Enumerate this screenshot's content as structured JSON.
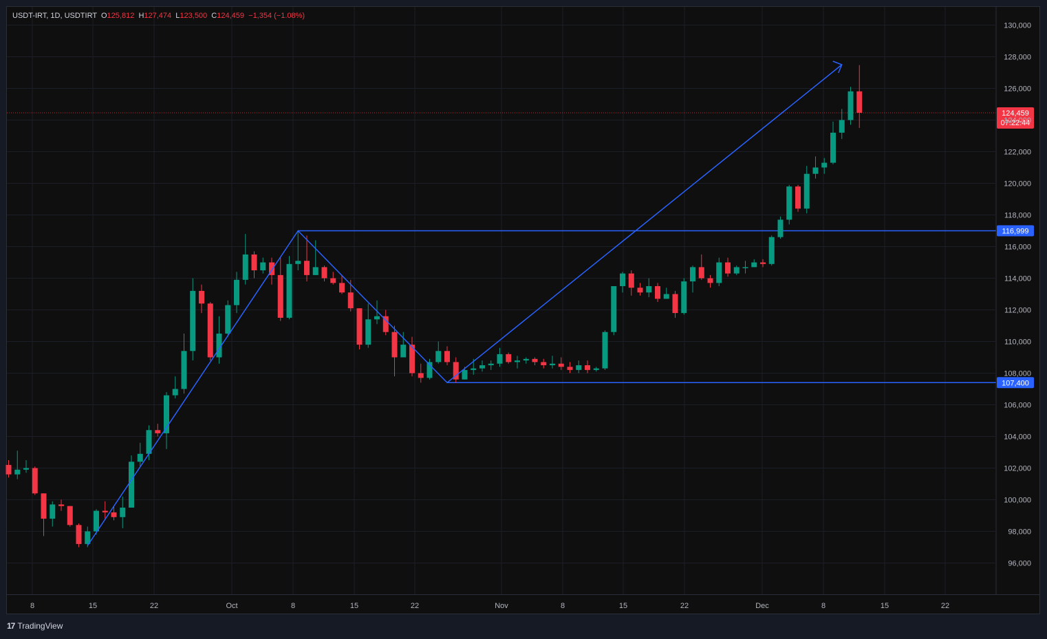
{
  "legend": {
    "symbol": "USDT-IRT, 1D, USDTIRT",
    "o_label": "O",
    "o_value": "125,812",
    "h_label": "H",
    "h_value": "127,474",
    "l_label": "L",
    "l_value": "123,500",
    "c_label": "C",
    "c_value": "124,459",
    "change": "−1,354 (−1.08%)"
  },
  "price_tag": {
    "price": "124,459",
    "countdown": "07:22:44"
  },
  "level_tags": [
    "116,999",
    "107,400"
  ],
  "footer": {
    "brand": "TradingView"
  },
  "colors": {
    "up": "#089981",
    "down": "#f23645",
    "lines": "#2962ff",
    "background": "#0f0f0f"
  },
  "chart_data": {
    "type": "candlestick",
    "y_ticks": [
      "130,000",
      "128,000",
      "126,000",
      "124,000",
      "122,000",
      "120,000",
      "118,000",
      "116,000",
      "114,000",
      "112,000",
      "110,000",
      "108,000",
      "106,000",
      "104,000",
      "102,000",
      "100,000",
      "98,000",
      "96,000"
    ],
    "x_ticks": [
      "8",
      "15",
      "22",
      "Oct",
      "8",
      "15",
      "22",
      "Nov",
      "8",
      "15",
      "22",
      "Dec",
      "8",
      "15",
      "22"
    ],
    "ylim": [
      94800,
      130600
    ],
    "current_price": 124459,
    "levels": [
      116999,
      107400
    ],
    "zigzag": [
      {
        "bar": 9,
        "price": 97100
      },
      {
        "bar": 33,
        "price": 117000
      },
      {
        "bar": 50,
        "price": 107400
      },
      {
        "bar": 95,
        "price": 127500
      }
    ],
    "candles": [
      [
        102200,
        101600,
        102500,
        101400
      ],
      [
        101600,
        101900,
        103100,
        101300
      ],
      [
        101900,
        102000,
        102500,
        101700
      ],
      [
        102000,
        100400,
        102100,
        100300
      ],
      [
        100400,
        98800,
        100400,
        97700
      ],
      [
        98800,
        99700,
        99900,
        98300
      ],
      [
        99700,
        99600,
        100000,
        99300
      ],
      [
        99600,
        98400,
        99600,
        98300
      ],
      [
        98400,
        97200,
        98500,
        97000
      ],
      [
        97200,
        98000,
        98300,
        97000
      ],
      [
        98000,
        99300,
        99400,
        97800
      ],
      [
        99300,
        99200,
        99900,
        98800
      ],
      [
        99200,
        98900,
        99600,
        98700
      ],
      [
        98900,
        99500,
        100200,
        98200
      ],
      [
        99500,
        102400,
        102800,
        99500
      ],
      [
        102400,
        102900,
        103600,
        102100
      ],
      [
        102900,
        104400,
        104700,
        102500
      ],
      [
        104400,
        104200,
        104800,
        104000
      ],
      [
        104200,
        106600,
        106800,
        103200
      ],
      [
        106600,
        107000,
        107800,
        106400
      ],
      [
        107000,
        109400,
        110500,
        106700
      ],
      [
        109400,
        113200,
        114000,
        108800
      ],
      [
        113200,
        112400,
        113600,
        111800
      ],
      [
        112400,
        109000,
        112500,
        108800
      ],
      [
        109000,
        110500,
        111600,
        108600
      ],
      [
        110500,
        112300,
        112600,
        110300
      ],
      [
        112300,
        113900,
        114400,
        111800
      ],
      [
        113900,
        115500,
        116800,
        113600
      ],
      [
        115500,
        114500,
        115700,
        114000
      ],
      [
        114500,
        115000,
        115300,
        114300
      ],
      [
        115000,
        114200,
        115300,
        113600
      ],
      [
        114200,
        111500,
        115300,
        111300
      ],
      [
        111500,
        114900,
        115400,
        111400
      ],
      [
        114900,
        115100,
        117000,
        114500
      ],
      [
        115100,
        114200,
        116700,
        113800
      ],
      [
        114200,
        114700,
        116400,
        114200
      ],
      [
        114700,
        114000,
        114800,
        113800
      ],
      [
        114000,
        113700,
        114400,
        113600
      ],
      [
        113700,
        113100,
        114200,
        113000
      ],
      [
        113100,
        112100,
        113900,
        111900
      ],
      [
        112100,
        109800,
        112100,
        109500
      ],
      [
        109800,
        111400,
        112400,
        109600
      ],
      [
        111400,
        111600,
        112600,
        111100
      ],
      [
        111600,
        110600,
        112000,
        110400
      ],
      [
        110600,
        109000,
        111000,
        107800
      ],
      [
        109000,
        109800,
        110600,
        109000
      ],
      [
        109800,
        108000,
        110300,
        107800
      ],
      [
        108000,
        107700,
        108600,
        107400
      ],
      [
        107700,
        108700,
        108900,
        107600
      ],
      [
        108700,
        109400,
        110000,
        108600
      ],
      [
        109400,
        108700,
        109700,
        108500
      ],
      [
        108700,
        107600,
        109000,
        107400
      ],
      [
        107600,
        108200,
        108400,
        107600
      ],
      [
        108200,
        108300,
        108900,
        107900
      ],
      [
        108300,
        108500,
        108800,
        108100
      ],
      [
        108500,
        108600,
        108800,
        108200
      ],
      [
        108600,
        109200,
        109600,
        108400
      ],
      [
        109200,
        108700,
        109300,
        108600
      ],
      [
        108700,
        108800,
        109100,
        108300
      ],
      [
        108800,
        108900,
        109000,
        108600
      ],
      [
        108900,
        108700,
        109000,
        108500
      ],
      [
        108700,
        108500,
        108900,
        108300
      ],
      [
        108500,
        108600,
        109100,
        108300
      ],
      [
        108600,
        108400,
        109000,
        108200
      ],
      [
        108400,
        108200,
        108700,
        108000
      ],
      [
        108200,
        108500,
        108800,
        108000
      ],
      [
        108500,
        108200,
        108800,
        108000
      ],
      [
        108200,
        108300,
        108400,
        108100
      ],
      [
        108300,
        110600,
        110700,
        108200
      ],
      [
        110600,
        113500,
        113500,
        110400
      ],
      [
        113500,
        114300,
        114400,
        113100
      ],
      [
        114300,
        113400,
        114500,
        112900
      ],
      [
        113400,
        113100,
        113700,
        112900
      ],
      [
        113100,
        113500,
        114000,
        112800
      ],
      [
        113500,
        112700,
        113700,
        112500
      ],
      [
        112700,
        113000,
        113400,
        112700
      ],
      [
        113000,
        111800,
        113200,
        111500
      ],
      [
        111800,
        113800,
        114000,
        111700
      ],
      [
        113800,
        114700,
        114800,
        113100
      ],
      [
        114700,
        114000,
        115500,
        113900
      ],
      [
        114000,
        113700,
        114200,
        113400
      ],
      [
        113700,
        115000,
        115300,
        113500
      ],
      [
        115000,
        114300,
        115300,
        114100
      ],
      [
        114300,
        114700,
        114800,
        114200
      ],
      [
        114700,
        114700,
        115100,
        114300
      ],
      [
        114700,
        115000,
        115200,
        114800
      ],
      [
        115000,
        114900,
        115200,
        114700
      ],
      [
        114900,
        116600,
        116700,
        114800
      ],
      [
        116600,
        117700,
        117900,
        116500
      ],
      [
        117700,
        119800,
        119900,
        117400
      ],
      [
        119800,
        118400,
        119900,
        118200
      ],
      [
        118400,
        120600,
        121100,
        118100
      ],
      [
        120600,
        121000,
        121700,
        120300
      ],
      [
        121000,
        121300,
        121600,
        120600
      ],
      [
        121300,
        123200,
        123900,
        121200
      ],
      [
        123200,
        124000,
        124700,
        122800
      ],
      [
        124000,
        125812,
        126100,
        123700
      ],
      [
        125812,
        124459,
        127474,
        123500
      ]
    ]
  }
}
